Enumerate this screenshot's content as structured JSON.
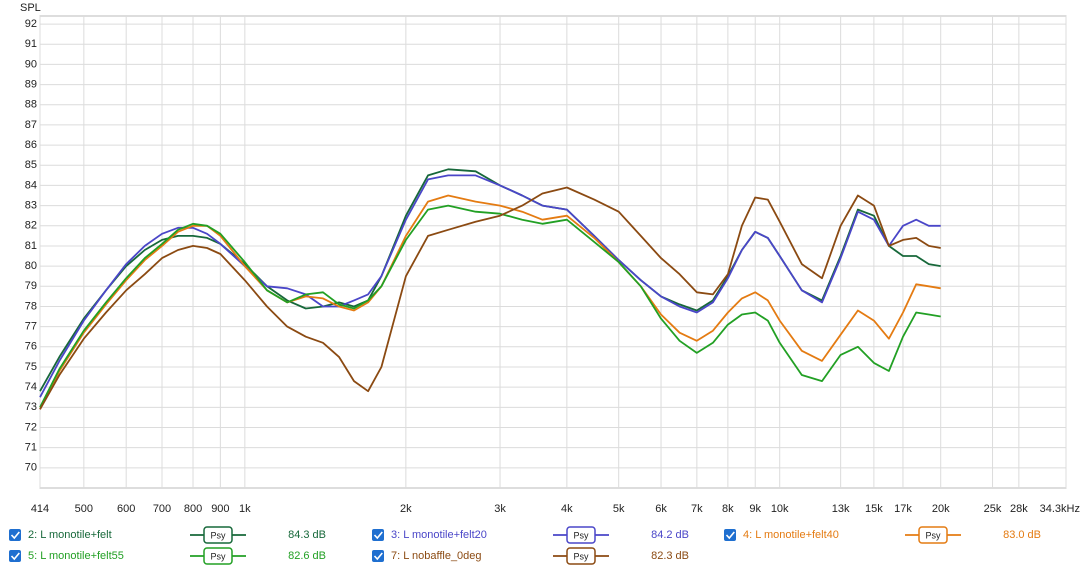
{
  "chart_data": {
    "type": "line",
    "y_label": "SPL",
    "log_x": true,
    "grid": true,
    "xlim": [
      414,
      34300
    ],
    "ylim": [
      69,
      92.4
    ],
    "xticks": [
      414,
      500,
      600,
      700,
      800,
      900,
      {
        "value": 1000,
        "label": "1k"
      },
      {
        "value": 2000,
        "label": "2k"
      },
      {
        "value": 3000,
        "label": "3k"
      },
      {
        "value": 4000,
        "label": "4k"
      },
      {
        "value": 5000,
        "label": "5k"
      },
      {
        "value": 6000,
        "label": "6k"
      },
      {
        "value": 7000,
        "label": "7k"
      },
      {
        "value": 8000,
        "label": "8k"
      },
      {
        "value": 9000,
        "label": "9k"
      },
      {
        "value": 10000,
        "label": "10k"
      },
      {
        "value": 13000,
        "label": "13k"
      },
      {
        "value": 15000,
        "label": "15k"
      },
      {
        "value": 17000,
        "label": "17k"
      },
      {
        "value": 20000,
        "label": "20k"
      },
      {
        "value": 25000,
        "label": "25k"
      },
      {
        "value": 28000,
        "label": "28k"
      },
      {
        "value": 34300,
        "label": "34.3kHz"
      }
    ],
    "yticks": [
      70,
      71,
      72,
      73,
      74,
      75,
      76,
      77,
      78,
      79,
      80,
      81,
      82,
      83,
      84,
      85,
      86,
      87,
      88,
      89,
      90,
      91,
      92
    ],
    "x": [
      414,
      450,
      500,
      550,
      600,
      650,
      700,
      750,
      800,
      850,
      900,
      1000,
      1100,
      1200,
      1300,
      1400,
      1500,
      1600,
      1700,
      1800,
      2000,
      2200,
      2400,
      2700,
      3000,
      3300,
      3600,
      4000,
      4500,
      5000,
      5500,
      6000,
      6500,
      7000,
      7500,
      8000,
      8500,
      9000,
      9500,
      10000,
      11000,
      12000,
      13000,
      14000,
      15000,
      16000,
      17000,
      18000,
      19000,
      20000
    ],
    "series": [
      {
        "name": "2: L monotile+felt",
        "color": "#17683a",
        "smoothing": "Psy",
        "level": "84.3 dB",
        "values": [
          73.8,
          75.5,
          77.4,
          78.8,
          80.0,
          80.8,
          81.3,
          81.5,
          81.5,
          81.4,
          81.1,
          80.1,
          79.0,
          78.3,
          77.9,
          78.0,
          78.2,
          78.0,
          78.3,
          79.5,
          82.5,
          84.5,
          84.8,
          84.7,
          84.0,
          83.5,
          83.0,
          82.8,
          81.5,
          80.3,
          79.3,
          78.5,
          78.1,
          77.8,
          78.3,
          79.5,
          80.8,
          81.7,
          81.4,
          80.5,
          78.8,
          78.3,
          80.5,
          82.8,
          82.5,
          81.0,
          80.5,
          80.5,
          80.1,
          80.0
        ]
      },
      {
        "name": "3: L monotile+felt20",
        "color": "#4a46c8",
        "smoothing": "Psy",
        "level": "84.2 dB",
        "values": [
          73.5,
          75.3,
          77.3,
          78.8,
          80.1,
          81.0,
          81.6,
          81.9,
          81.9,
          81.6,
          81.1,
          80.0,
          79.0,
          78.9,
          78.6,
          78.0,
          78.0,
          78.3,
          78.6,
          79.5,
          82.3,
          84.3,
          84.5,
          84.5,
          84.0,
          83.5,
          83.0,
          82.8,
          81.5,
          80.3,
          79.3,
          78.5,
          78.0,
          77.7,
          78.2,
          79.4,
          80.8,
          81.7,
          81.4,
          80.5,
          78.8,
          78.2,
          80.4,
          82.7,
          82.3,
          81.0,
          82.0,
          82.3,
          82.0,
          82.0
        ]
      },
      {
        "name": "4: L monotile+felt40",
        "color": "#e47b12",
        "smoothing": "Psy",
        "level": "83.0 dB",
        "values": [
          72.9,
          74.8,
          76.7,
          78.1,
          79.3,
          80.3,
          81.0,
          81.7,
          82.0,
          82.0,
          81.5,
          80.0,
          78.8,
          78.2,
          78.5,
          78.4,
          78.0,
          77.8,
          78.2,
          79.0,
          81.5,
          83.2,
          83.5,
          83.2,
          83.0,
          82.7,
          82.3,
          82.5,
          81.4,
          80.2,
          79.0,
          77.6,
          76.7,
          76.3,
          76.8,
          77.7,
          78.4,
          78.7,
          78.3,
          77.3,
          75.8,
          75.3,
          76.6,
          77.8,
          77.3,
          76.4,
          77.7,
          79.1,
          79.0,
          78.9
        ]
      },
      {
        "name": "5: L monotile+felt55",
        "color": "#22a024",
        "smoothing": "Psy",
        "level": "82.6 dB",
        "values": [
          73.0,
          74.9,
          76.8,
          78.2,
          79.4,
          80.4,
          81.1,
          81.8,
          82.1,
          82.0,
          81.6,
          80.2,
          78.8,
          78.2,
          78.6,
          78.7,
          78.1,
          77.9,
          78.3,
          79.0,
          81.3,
          82.8,
          83.0,
          82.7,
          82.6,
          82.3,
          82.1,
          82.3,
          81.2,
          80.2,
          79.0,
          77.4,
          76.3,
          75.7,
          76.2,
          77.1,
          77.6,
          77.7,
          77.3,
          76.2,
          74.6,
          74.3,
          75.6,
          76.0,
          75.2,
          74.8,
          76.5,
          77.7,
          77.6,
          77.5
        ]
      },
      {
        "name": "7: L nobaffle_0deg",
        "color": "#8b4a12",
        "smoothing": "Psy",
        "level": "82.3 dB",
        "values": [
          72.9,
          74.6,
          76.4,
          77.7,
          78.8,
          79.6,
          80.4,
          80.8,
          81.0,
          80.9,
          80.6,
          79.3,
          78.0,
          77.0,
          76.5,
          76.2,
          75.5,
          74.3,
          73.8,
          75.0,
          79.5,
          81.5,
          81.8,
          82.2,
          82.5,
          83.0,
          83.6,
          83.9,
          83.3,
          82.7,
          81.5,
          80.4,
          79.6,
          78.7,
          78.6,
          79.6,
          82.0,
          83.4,
          83.3,
          82.2,
          80.1,
          79.4,
          82.0,
          83.5,
          83.0,
          81.0,
          81.3,
          81.4,
          81.0,
          80.9
        ]
      }
    ]
  }
}
